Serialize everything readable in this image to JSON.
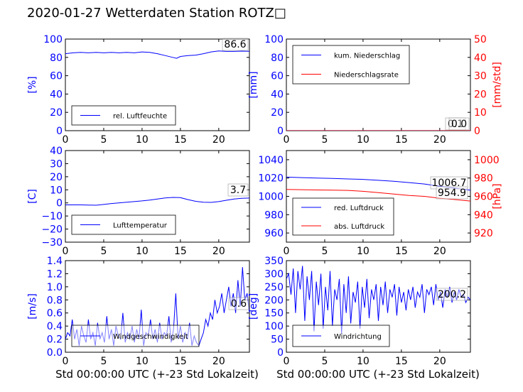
{
  "page": {
    "title": "2020-01-27 Wetterdaten Station ROTZ□"
  },
  "chart_data": [
    {
      "id": "humidity",
      "type": "line",
      "x_ticks": [
        "0",
        "5",
        "10",
        "15",
        "20"
      ],
      "xlim": [
        0,
        24
      ],
      "left_axis": {
        "label": "[%]",
        "ylim": [
          0,
          100
        ],
        "ticks": [
          "0",
          "20",
          "40",
          "60",
          "80",
          "100"
        ],
        "color": "#0000ff"
      },
      "series": [
        {
          "name": "rel. Luftfeuchte",
          "color": "#0000ff",
          "x": [
            0,
            1,
            2,
            3,
            4,
            5,
            6,
            7,
            8,
            9,
            10,
            11,
            12,
            13,
            14,
            14.5,
            15,
            16,
            17,
            18,
            19,
            20,
            21,
            22,
            23,
            24
          ],
          "y": [
            84,
            85,
            85.5,
            85,
            85.5,
            85,
            85.5,
            85,
            85.5,
            85,
            86,
            85.5,
            84,
            82,
            80,
            79,
            81,
            82,
            82.5,
            84,
            86,
            87,
            86.5,
            86.5,
            86.8,
            86.6
          ]
        }
      ],
      "annotation": "86.6",
      "legend": "bottom-left"
    },
    {
      "id": "precip",
      "type": "line",
      "x_ticks": [
        "0",
        "5",
        "10",
        "15",
        "20"
      ],
      "xlim": [
        0,
        24
      ],
      "left_axis": {
        "label": "[mm]",
        "ylim": [
          0,
          100
        ],
        "ticks": [
          "0",
          "20",
          "40",
          "60",
          "80",
          "100"
        ],
        "color": "#0000ff"
      },
      "right_axis": {
        "label": "[mm/std]",
        "ylim": [
          0,
          50
        ],
        "ticks": [
          "0",
          "10",
          "20",
          "30",
          "40",
          "50"
        ],
        "color": "#ff0000"
      },
      "series": [
        {
          "name": "kum. Niederschlag",
          "color": "#0000ff",
          "axis": "left",
          "x": [
            0,
            24
          ],
          "y": [
            0.1,
            0.1
          ]
        },
        {
          "name": "Niederschlagsrate",
          "color": "#ff0000",
          "axis": "right",
          "x": [
            0,
            24
          ],
          "y": [
            0,
            0
          ]
        }
      ],
      "annotations": [
        "0.1",
        "0.0"
      ],
      "legend": "top-left"
    },
    {
      "id": "temperature",
      "type": "line",
      "x_ticks": [
        "0",
        "5",
        "10",
        "15",
        "20"
      ],
      "xlim": [
        0,
        24
      ],
      "left_axis": {
        "label": "[C]",
        "ylim": [
          -30,
          40
        ],
        "ticks": [
          "−30",
          "−20",
          "−10",
          "0",
          "10",
          "20",
          "30",
          "40"
        ],
        "color": "#0000ff"
      },
      "series": [
        {
          "name": "Lufttemperatur",
          "color": "#0000ff",
          "x": [
            0,
            2,
            4,
            5,
            6,
            8,
            10,
            11,
            12,
            13,
            14,
            15,
            16,
            17,
            18,
            19,
            20,
            21,
            22,
            23,
            24
          ],
          "y": [
            -1.5,
            -1.5,
            -1.8,
            -1.2,
            -0.5,
            0.5,
            1.5,
            2.2,
            3,
            3.8,
            4.2,
            4,
            2.5,
            1.2,
            0.5,
            0.4,
            1,
            2,
            3,
            3.5,
            3.7
          ]
        }
      ],
      "annotation": "3.7",
      "legend": "bottom-left"
    },
    {
      "id": "pressure",
      "type": "line",
      "x_ticks": [
        "0",
        "5",
        "10",
        "15",
        "20"
      ],
      "xlim": [
        0,
        24
      ],
      "left_axis": {
        "label": "",
        "ylim": [
          950,
          1050
        ],
        "ticks": [
          "960",
          "980",
          "1000",
          "1020",
          "1040"
        ],
        "color": "#0000ff"
      },
      "right_axis": {
        "label": "[hPa]",
        "ylim": [
          910,
          1010
        ],
        "ticks": [
          "920",
          "940",
          "960",
          "980",
          "1000"
        ],
        "color": "#ff0000"
      },
      "series": [
        {
          "name": "red. Luftdruck",
          "color": "#0000ff",
          "axis": "left",
          "x": [
            0,
            2,
            4,
            6,
            8,
            10,
            12,
            14,
            16,
            18,
            20,
            22,
            24
          ],
          "y": [
            1021,
            1020.5,
            1020,
            1019.5,
            1019,
            1018.5,
            1017.5,
            1016.5,
            1015,
            1013.5,
            1011,
            1009,
            1006.7
          ]
        },
        {
          "name": "abs. Luftdruck",
          "color": "#ff0000",
          "axis": "right",
          "x": [
            0,
            2,
            4,
            6,
            8,
            10,
            12,
            14,
            16,
            18,
            20,
            22,
            24
          ],
          "y": [
            967.5,
            967.3,
            967,
            966.8,
            966.5,
            965.5,
            964,
            962.5,
            961,
            960,
            958,
            956.5,
            954.9
          ]
        }
      ],
      "annotations": [
        "1006.7",
        "954.9"
      ],
      "legend": "bottom-left"
    },
    {
      "id": "windspeed",
      "type": "line",
      "x_ticks": [
        "0",
        "5",
        "10",
        "15",
        "20"
      ],
      "xlim": [
        0,
        24
      ],
      "left_axis": {
        "label": "[m/s]",
        "ylim": [
          0,
          1.4
        ],
        "ticks": [
          "0.0",
          "0.2",
          "0.4",
          "0.6",
          "0.8",
          "1.0",
          "1.2",
          "1.4"
        ],
        "color": "#0000ff"
      },
      "series": [
        {
          "name": "Windgeschwindigkeit",
          "color": "#0000ff",
          "x": [
            0,
            0.3,
            0.6,
            0.9,
            1.2,
            1.5,
            1.8,
            2.1,
            2.4,
            2.7,
            3,
            3.3,
            3.6,
            3.9,
            4.2,
            4.5,
            4.8,
            5.1,
            5.4,
            5.7,
            6,
            6.3,
            6.6,
            6.9,
            7.2,
            7.5,
            7.8,
            8.1,
            8.4,
            8.7,
            9,
            9.3,
            9.6,
            9.9,
            10.2,
            10.5,
            10.8,
            11.1,
            11.4,
            11.7,
            12,
            12.3,
            12.6,
            12.9,
            13.2,
            13.5,
            13.8,
            14.1,
            14.4,
            14.7,
            15,
            15.3,
            15.6,
            15.9,
            16.2,
            16.5,
            16.8,
            17.1,
            17.4,
            17.7,
            18,
            18.3,
            18.6,
            18.9,
            19.2,
            19.5,
            19.8,
            20.1,
            20.4,
            20.7,
            21,
            21.3,
            21.6,
            21.9,
            22.2,
            22.5,
            22.8,
            23.1,
            23.4,
            23.7,
            24
          ],
          "y": [
            0.2,
            0.3,
            0.25,
            0.5,
            0.2,
            0.35,
            0.1,
            0.4,
            0.25,
            0.15,
            0.5,
            0.2,
            0.3,
            0.1,
            0.45,
            0.2,
            0.3,
            0.15,
            0.55,
            0.2,
            0.35,
            0.1,
            0.4,
            0.25,
            0.2,
            0.6,
            0.15,
            0.3,
            0.2,
            0.4,
            0.15,
            0.35,
            0.2,
            0.65,
            0.1,
            0.3,
            0.25,
            0.5,
            0.2,
            0.35,
            0.15,
            0.45,
            0.2,
            0.3,
            0.25,
            0.55,
            0.15,
            0.35,
            0.9,
            0.2,
            0.4,
            0.15,
            0.3,
            0.2,
            0.45,
            0.1,
            0.25,
            0.15,
            0.1,
            0.2,
            0.3,
            0.5,
            0.4,
            0.6,
            0.5,
            0.8,
            0.6,
            0.7,
            0.9,
            0.6,
            0.8,
            1.0,
            0.7,
            0.9,
            0.6,
            1.1,
            0.7,
            1.3,
            0.8,
            0.9,
            0.6
          ]
        }
      ],
      "annotation": "0.6",
      "legend": "bottom-left"
    },
    {
      "id": "winddir",
      "type": "line",
      "x_ticks": [
        "0",
        "5",
        "10",
        "15",
        "20"
      ],
      "xlim": [
        0,
        24
      ],
      "left_axis": {
        "label": "[deg]",
        "ylim": [
          0,
          350
        ],
        "ticks": [
          "0",
          "50",
          "100",
          "150",
          "200",
          "250",
          "300",
          "350"
        ],
        "color": "#0000ff"
      },
      "series": [
        {
          "name": "Windrichtung",
          "color": "#0000ff",
          "x": [
            0,
            0.3,
            0.6,
            0.9,
            1.2,
            1.5,
            1.8,
            2.1,
            2.4,
            2.7,
            3,
            3.3,
            3.6,
            3.9,
            4.2,
            4.5,
            4.8,
            5.1,
            5.4,
            5.7,
            6,
            6.3,
            6.6,
            6.9,
            7.2,
            7.5,
            7.8,
            8.1,
            8.4,
            8.7,
            9,
            9.3,
            9.6,
            9.9,
            10.2,
            10.5,
            10.8,
            11.1,
            11.4,
            11.7,
            12,
            12.3,
            12.6,
            12.9,
            13.2,
            13.5,
            13.8,
            14.1,
            14.4,
            14.7,
            15,
            15.3,
            15.6,
            15.9,
            16.2,
            16.5,
            16.8,
            17.1,
            17.4,
            17.7,
            18,
            18.3,
            18.6,
            18.9,
            19.2,
            19.5,
            19.8,
            20.1,
            20.4,
            20.7,
            21,
            21.3,
            21.6,
            21.9,
            22.2,
            22.5,
            22.8,
            23.1,
            23.4,
            23.7,
            24
          ],
          "y": [
            280,
            300,
            220,
            320,
            150,
            310,
            240,
            330,
            120,
            290,
            200,
            310,
            80,
            270,
            180,
            300,
            90,
            250,
            160,
            310,
            100,
            240,
            200,
            280,
            70,
            260,
            150,
            290,
            110,
            230,
            190,
            270,
            90,
            250,
            170,
            280,
            130,
            240,
            200,
            260,
            120,
            250,
            180,
            270,
            150,
            240,
            210,
            260,
            140,
            250,
            190,
            230,
            160,
            240,
            200,
            250,
            170,
            230,
            210,
            260,
            150,
            240,
            220,
            250,
            180,
            260,
            200,
            230,
            170,
            240,
            210,
            250,
            190,
            230,
            200,
            240,
            210,
            220,
            190,
            210,
            200
          ]
        }
      ],
      "annotation": "200.2",
      "legend": "bottom-left"
    }
  ],
  "x_axis_label": "Std 00:00:00 UTC (+-23 Std Lokalzeit)"
}
